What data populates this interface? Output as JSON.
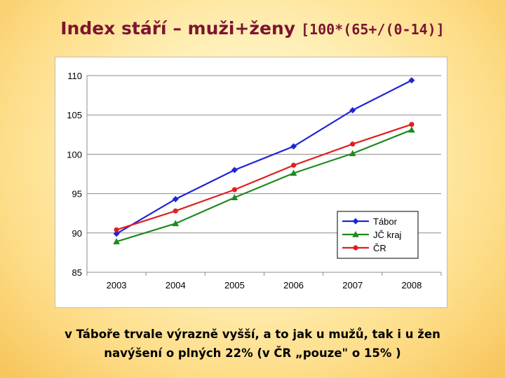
{
  "title": {
    "main": "Index stáří – muži+ženy",
    "formula": "[100*(65+/(0-14)]"
  },
  "caption": {
    "line1": "v Táboře trvale výrazně vyšší, a to jak u mužů, tak i u žen",
    "line2": "navýšení o plných 22% (v ČR „pouze\" o 15% )"
  },
  "chart_data": {
    "type": "line",
    "x": [
      "2003",
      "2004",
      "2005",
      "2006",
      "2007",
      "2008"
    ],
    "ylim": [
      85,
      110
    ],
    "yticks": [
      85,
      90,
      95,
      100,
      105,
      110
    ],
    "grid": true,
    "legend_position": "bottom-right",
    "series": [
      {
        "name": "Tábor",
        "color": "#1f24d6",
        "marker": "diamond",
        "values": [
          89.9,
          94.3,
          98.0,
          101.0,
          105.6,
          109.4
        ]
      },
      {
        "name": "JČ kraj",
        "color": "#1e8a1e",
        "marker": "triangle",
        "values": [
          88.9,
          91.2,
          94.5,
          97.6,
          100.1,
          103.1
        ]
      },
      {
        "name": "ČR",
        "color": "#e01f1f",
        "marker": "circle",
        "values": [
          90.4,
          92.8,
          95.5,
          98.6,
          101.3,
          103.8
        ]
      }
    ]
  }
}
